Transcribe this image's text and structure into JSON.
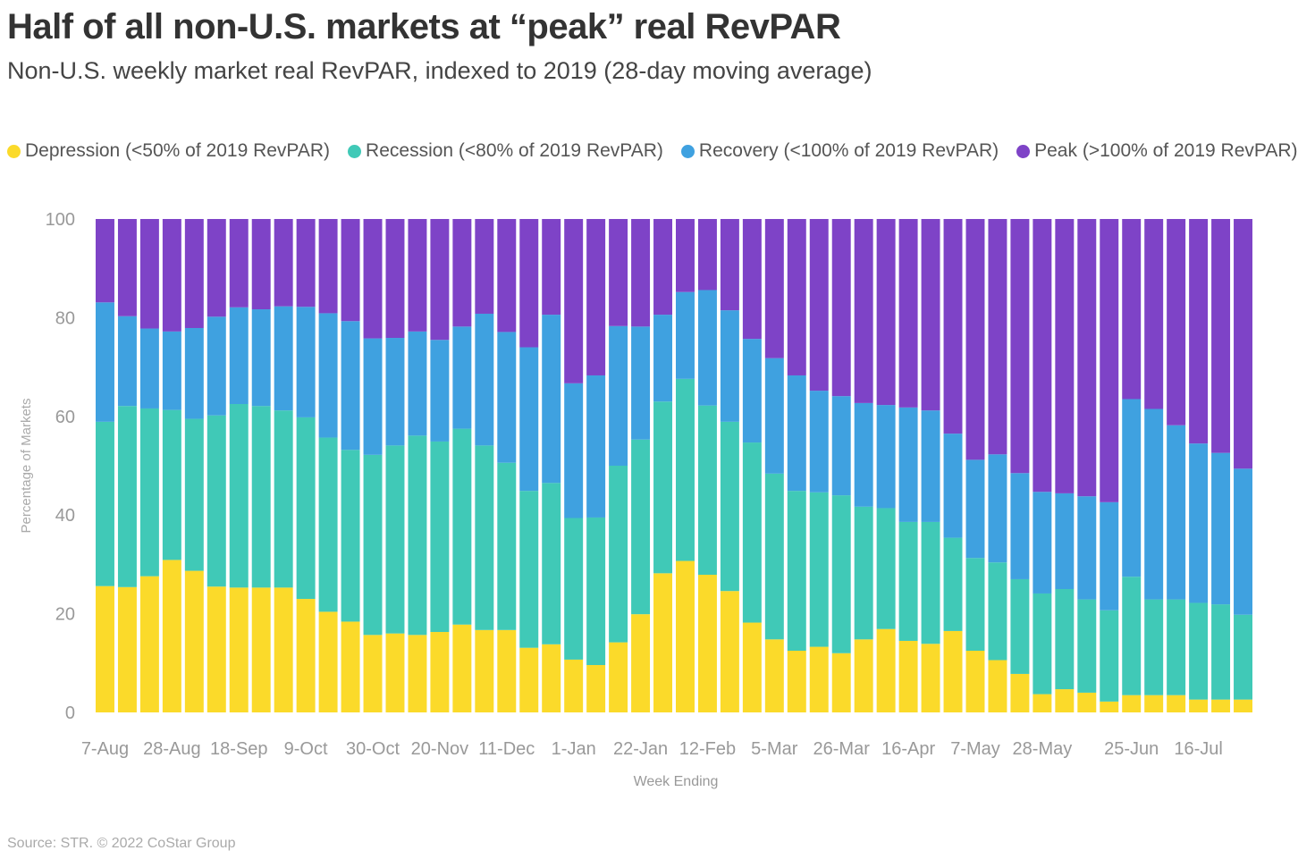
{
  "title": "Half of all non-U.S. markets at “peak” real RevPAR",
  "subtitle": "Non-U.S. weekly market real RevPAR, indexed to 2019 (28-day moving average)",
  "source": "Source: STR. © 2022 CoStar Group",
  "chart_data": {
    "type": "bar",
    "stacked": true,
    "xlabel": "Week Ending",
    "ylabel": "Percentage of Markets",
    "ylim": [
      0,
      100
    ],
    "yticks": [
      0,
      20,
      40,
      60,
      80,
      100
    ],
    "grid": false,
    "legend_position": "top",
    "x_tick_labels": [
      "7-Aug",
      "28-Aug",
      "18-Sep",
      "9-Oct",
      "30-Oct",
      "20-Nov",
      "11-Dec",
      "1-Jan",
      "22-Jan",
      "12-Feb",
      "5-Mar",
      "26-Mar",
      "16-Apr",
      "7-May",
      "28-May",
      "25-Jun",
      "16-Jul"
    ],
    "x_tick_label_bar_index": [
      0,
      3,
      6,
      9,
      12,
      15,
      18,
      21,
      24,
      27,
      30,
      33,
      36,
      39,
      42,
      46,
      49
    ],
    "series": [
      {
        "name": "Depression (<50% of 2019 RevPAR)",
        "color": "#FBDA2A",
        "values": [
          25.6,
          25.4,
          27.6,
          30.9,
          28.7,
          25.5,
          25.3,
          25.3,
          25.3,
          23.0,
          20.4,
          18.4,
          15.7,
          16.0,
          15.7,
          16.3,
          17.8,
          16.7,
          16.7,
          13.1,
          13.8,
          10.7,
          9.6,
          14.2,
          19.9,
          28.2,
          30.7,
          27.9,
          24.6,
          18.2,
          14.8,
          12.5,
          13.3,
          12.0,
          14.8,
          16.9,
          14.5,
          13.9,
          16.5,
          12.5,
          10.6,
          7.8,
          3.7,
          4.7,
          4.0,
          2.2,
          3.5,
          3.5,
          3.5,
          2.6,
          2.6,
          2.6
        ]
      },
      {
        "name": "Recession (<80% of 2019 RevPAR)",
        "color": "#40C9B7",
        "values": [
          33.3,
          36.7,
          34.0,
          30.4,
          30.8,
          34.7,
          37.2,
          36.8,
          35.9,
          36.8,
          35.3,
          34.8,
          36.5,
          38.1,
          40.4,
          38.6,
          39.7,
          37.4,
          33.9,
          31.8,
          32.7,
          28.7,
          29.9,
          35.8,
          35.4,
          34.8,
          36.9,
          34.3,
          34.3,
          36.5,
          33.6,
          32.4,
          31.3,
          32.0,
          26.9,
          24.5,
          24.1,
          24.7,
          18.9,
          18.8,
          19.8,
          19.2,
          20.4,
          20.3,
          18.9,
          18.5,
          24.0,
          19.4,
          19.4,
          19.6,
          19.3,
          17.2
        ]
      },
      {
        "name": "Recovery (<100% of 2019 RevPAR)",
        "color": "#3FA1E0",
        "values": [
          24.2,
          18.2,
          16.2,
          15.9,
          18.4,
          20.0,
          19.6,
          19.6,
          21.1,
          22.4,
          25.2,
          26.1,
          23.6,
          21.8,
          21.1,
          20.6,
          20.7,
          26.7,
          26.5,
          29.1,
          34.1,
          27.3,
          28.8,
          28.3,
          22.9,
          17.6,
          17.6,
          23.4,
          22.6,
          21.0,
          23.4,
          23.4,
          20.6,
          20.1,
          21.0,
          20.9,
          23.2,
          22.6,
          21.1,
          19.9,
          21.9,
          21.5,
          20.6,
          19.4,
          20.9,
          21.9,
          36.0,
          38.6,
          35.3,
          32.3,
          30.7,
          29.6
        ]
      },
      {
        "name": "Peak (>100% of 2019 RevPAR)",
        "color": "#7E43C7",
        "values": [
          16.9,
          19.7,
          22.2,
          22.8,
          22.1,
          19.8,
          17.9,
          18.3,
          17.7,
          17.8,
          19.1,
          20.7,
          24.2,
          24.1,
          22.8,
          24.5,
          21.8,
          19.2,
          22.9,
          26.0,
          19.4,
          33.3,
          31.7,
          21.7,
          21.8,
          19.4,
          14.8,
          14.4,
          18.5,
          24.3,
          28.2,
          31.7,
          34.8,
          35.9,
          37.3,
          37.7,
          38.2,
          38.8,
          43.5,
          48.8,
          47.7,
          51.5,
          55.3,
          55.6,
          56.2,
          57.4,
          36.5,
          38.5,
          41.8,
          45.5,
          47.4,
          50.6
        ]
      }
    ]
  }
}
